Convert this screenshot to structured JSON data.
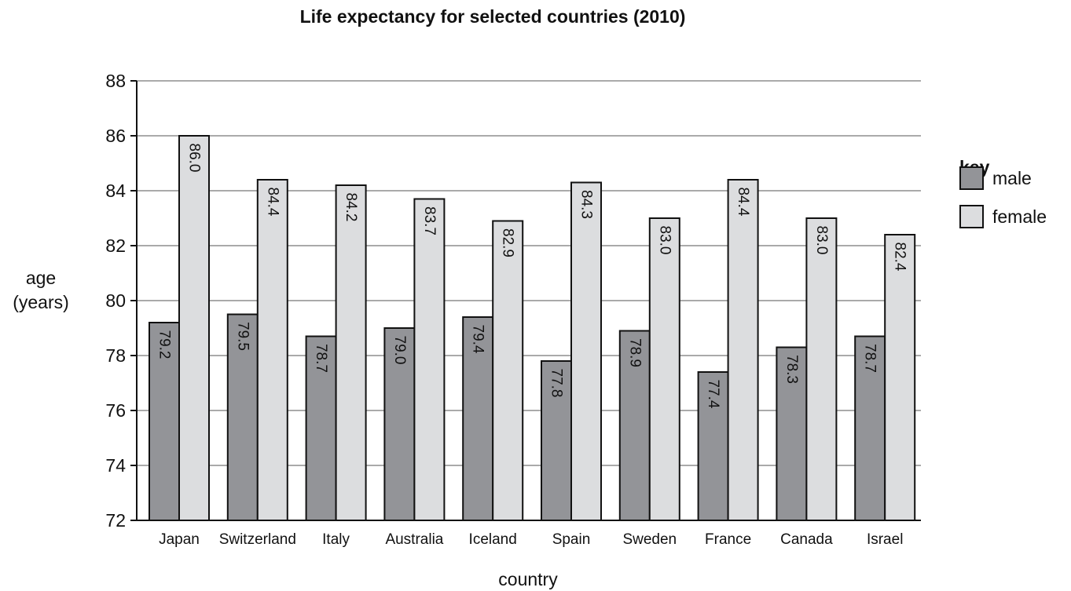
{
  "chart_data": {
    "type": "bar",
    "title": "Life expectancy for selected countries (2010)",
    "xlabel": "country",
    "ylabel_line1": "age",
    "ylabel_line2": "(years)",
    "ylim": [
      72,
      88
    ],
    "yticks": [
      72,
      74,
      76,
      78,
      80,
      82,
      84,
      86,
      88
    ],
    "grid": true,
    "categories": [
      "Japan",
      "Switzerland",
      "Italy",
      "Australia",
      "Iceland",
      "Spain",
      "Sweden",
      "France",
      "Canada",
      "Israel"
    ],
    "series": [
      {
        "name": "male",
        "color": "#939498",
        "values": [
          79.2,
          79.5,
          78.7,
          79.0,
          79.4,
          77.8,
          78.9,
          77.4,
          78.3,
          78.7
        ]
      },
      {
        "name": "female",
        "color": "#dcdddf",
        "values": [
          86.0,
          84.4,
          84.2,
          83.7,
          82.9,
          84.3,
          83.0,
          84.4,
          83.0,
          82.4
        ]
      }
    ],
    "legend": {
      "title": "key",
      "position": "right"
    }
  }
}
